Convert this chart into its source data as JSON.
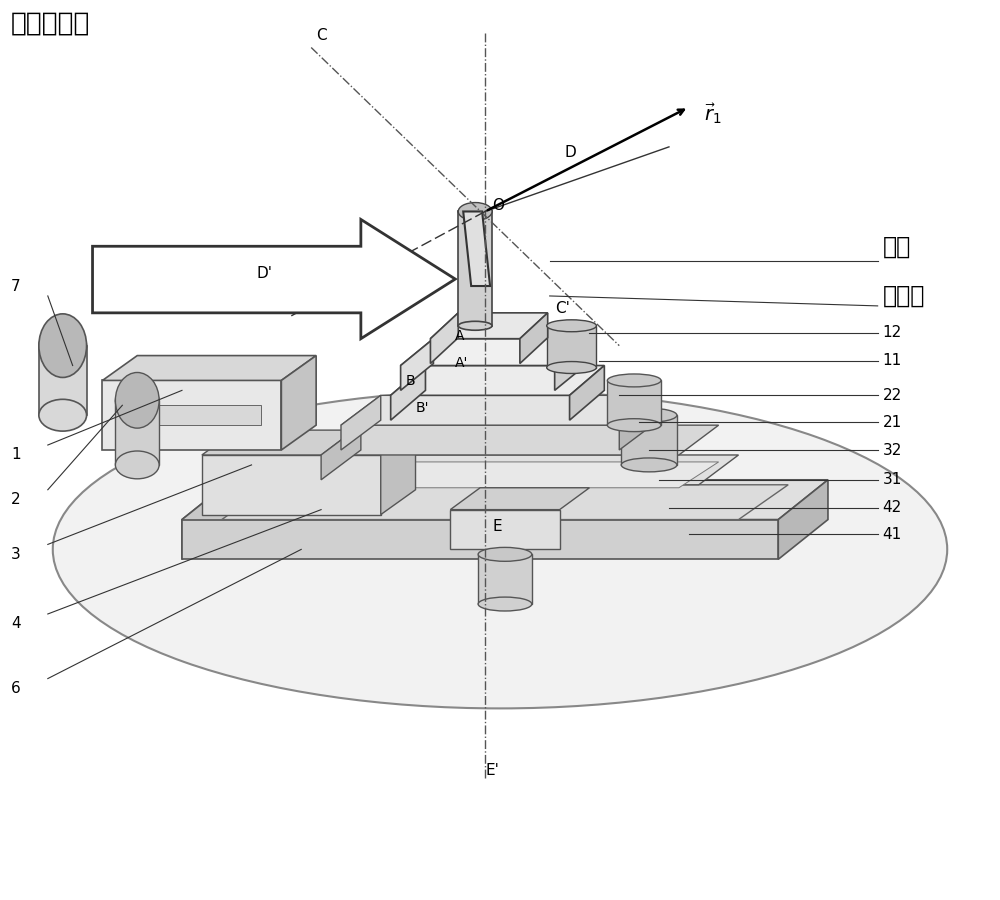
{
  "bg_color": "#ffffff",
  "fig_width": 10.0,
  "fig_height": 9.0,
  "labels": {
    "incident_beam": "入射中子束",
    "sample": "样品",
    "sample_holder": "样品架",
    "C": "C",
    "C_prime": "C'",
    "D": "D",
    "D_prime": "D'",
    "O": "O",
    "A": "A",
    "A_prime": "A'",
    "B": "B",
    "B_prime": "B'",
    "E": "E",
    "E_prime": "E'",
    "r1": "$\\vec{r}_{1}$",
    "n1": "1",
    "n2": "2",
    "n3": "3",
    "n4": "4",
    "n6": "6",
    "n7": "7",
    "n11": "11",
    "n12": "12",
    "n21": "21",
    "n22": "22",
    "n31": "31",
    "n32": "32",
    "n41": "41",
    "n42": "42"
  }
}
